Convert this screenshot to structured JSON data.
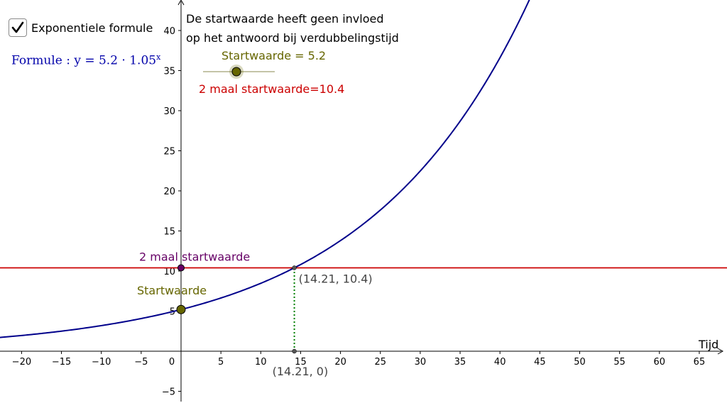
{
  "checkbox": {
    "label": "Exponentiele formule",
    "checked": true
  },
  "formula": {
    "text": "Formule : y = 5.2 · 1.05",
    "exponent": "x",
    "color": "#0000aa"
  },
  "note": {
    "line1": "De startwaarde heeft geen invloed",
    "line2": "op het antwoord bij verdubbelingstijd"
  },
  "slider": {
    "label": "Startwaarde = 5.2",
    "value": 5.2,
    "color": "#666600"
  },
  "double_label": {
    "text": "2 maal startwaarde=10.4",
    "color": "#cc0000"
  },
  "chart_data": {
    "type": "line",
    "function": {
      "a": 5.2,
      "b": 1.05,
      "color": "#00008b"
    },
    "xlim": [
      -23,
      68
    ],
    "ylim": [
      -7,
      44
    ],
    "x_ticks": [
      -20,
      -15,
      -10,
      -5,
      0,
      5,
      10,
      15,
      20,
      25,
      30,
      35,
      40,
      45,
      50,
      55,
      60,
      65
    ],
    "y_ticks": [
      -5,
      5,
      10,
      15,
      20,
      25,
      30,
      35,
      40
    ],
    "xlabel": "Tijd",
    "grid": false,
    "horizontal_line": {
      "y": 10.4,
      "color": "#cc0000"
    },
    "points": [
      {
        "name": "Startwaarde",
        "x": 0,
        "y": 5.2,
        "label": "Startwaarde",
        "color": "#666600"
      },
      {
        "name": "2 maal startwaarde",
        "x": 0,
        "y": 10.4,
        "label": "2 maal startwaarde",
        "color": "#660066"
      },
      {
        "name": "intersection",
        "x": 14.21,
        "y": 10.4,
        "label": "(14.21, 10.4)",
        "color": "#444444"
      },
      {
        "name": "x-intercept",
        "x": 14.21,
        "y": 0,
        "label": "(14.21, 0)",
        "color": "#444444"
      }
    ],
    "dotted_line": {
      "x": 14.21,
      "from_y": 0,
      "to_y": 10.4,
      "color": "#008000"
    }
  }
}
